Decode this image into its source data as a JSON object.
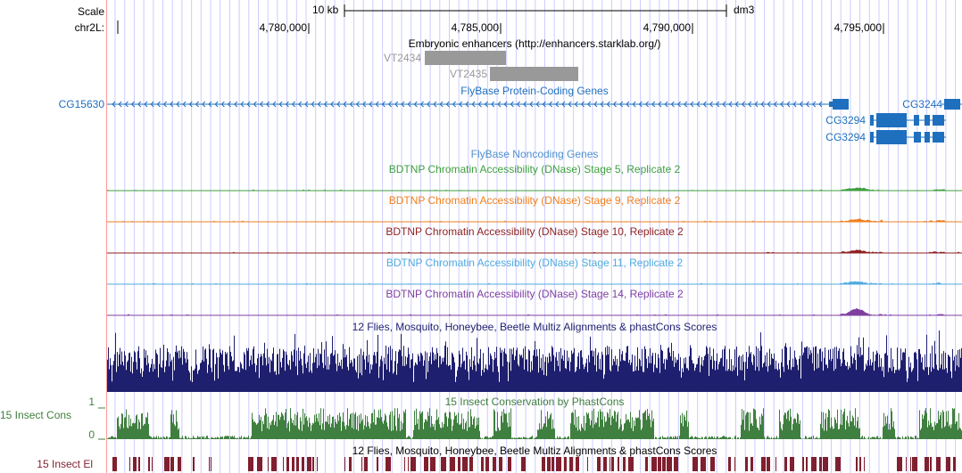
{
  "ruler": {
    "scale_label": "Scale",
    "scale_value": "10 kb",
    "assembly": "dm3",
    "chrom_label": "chr2L:",
    "positions": [
      "4,780,000",
      "4,785,000",
      "4,790,000",
      "4,795,000"
    ]
  },
  "tracks": {
    "enhancers": {
      "title": "Embryonic enhancers (http://enhancers.starklab.org/)",
      "items": [
        "VT2434",
        "VT2435"
      ]
    },
    "flybase_coding": {
      "title": "FlyBase Protein-Coding Genes",
      "genes": [
        "CG15630",
        "CG3244",
        "CG3294",
        "CG3294"
      ]
    },
    "flybase_noncoding": {
      "title": "FlyBase Noncoding Genes"
    },
    "dnase": [
      {
        "title": "BDTNP Chromatin Accessibility (DNase) Stage 5, Replicate 2",
        "color": "#3f9f3f"
      },
      {
        "title": "BDTNP Chromatin Accessibility (DNase) Stage 9, Replicate 2",
        "color": "#f07f1f"
      },
      {
        "title": "BDTNP Chromatin Accessibility (DNase) Stage 10, Replicate 2",
        "color": "#8f1f1f"
      },
      {
        "title": "BDTNP Chromatin Accessibility (DNase) Stage 11, Replicate 2",
        "color": "#4faadf"
      },
      {
        "title": "BDTNP Chromatin Accessibility (DNase) Stage 14, Replicate 2",
        "color": "#7f3f9f"
      }
    ],
    "multiz": {
      "title": "12 Flies, Mosquito, Honeybee, Beetle Multiz Alignments & phastCons Scores",
      "color": "#1f1f6f"
    },
    "phastcons": {
      "title": "15 Insect Conservation by PhastCons",
      "side_label": "15 Insect Cons",
      "ymax": "1",
      "ymin": "0",
      "color": "#3f7f3f"
    },
    "elements": {
      "title": "12 Flies, Mosquito, Honeybee, Beetle Multiz Alignments & phastCons Scores",
      "side_label": "15 Insect El",
      "color": "#7f1f2f"
    }
  },
  "colors": {
    "gene_blue": "#1f6fbf",
    "enhancer_gray": "#999999",
    "grid_line": "#ccccff",
    "left_border": "#ff9999"
  }
}
